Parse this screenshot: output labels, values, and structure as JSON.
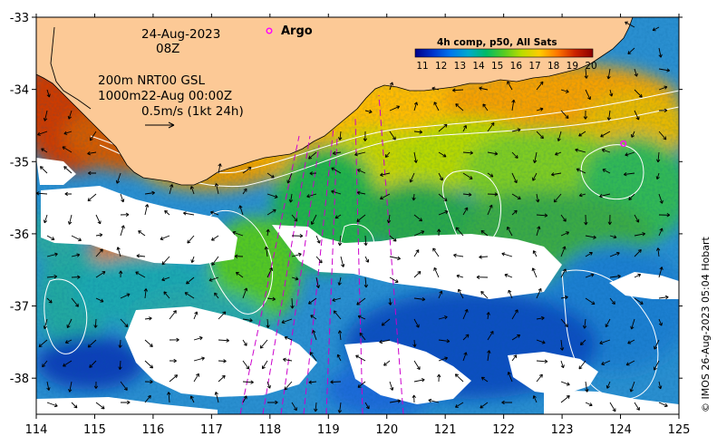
{
  "map": {
    "date_line": "24-Aug-2023",
    "time_line": "08Z",
    "depth_line_1": "200m  NRT00 GSL",
    "depth_line_2": "1000m22-Aug 00:00Z",
    "vector_scale_label": "0.5m/s (1kt 24h)",
    "argo_label": "Argo",
    "credit": "© IMOS 26-Aug-2023 05:04 Hobart",
    "lon_ticks": [
      "114",
      "115",
      "116",
      "117",
      "118",
      "119",
      "120",
      "121",
      "122",
      "123",
      "124",
      "125"
    ],
    "lat_ticks": [
      "-33",
      "-34",
      "-35",
      "-36",
      "-37",
      "-38"
    ],
    "lon_range": [
      114,
      125
    ],
    "lat_range": [
      -38.5,
      -33
    ],
    "colorbar": {
      "title": "4h comp, p50, All Sats",
      "ticks": [
        "11",
        "12",
        "13",
        "14",
        "15",
        "16",
        "17",
        "18",
        "19",
        "20"
      ],
      "colors": [
        "#00008b",
        "#0033cc",
        "#0077ee",
        "#00aacc",
        "#00bb66",
        "#55cc22",
        "#bbdd00",
        "#ffcc00",
        "#ff7700",
        "#cc2200",
        "#8b0000"
      ]
    },
    "colors": {
      "land": "#fcc996",
      "no_data": "#ffffff",
      "argo_marker": "#ff00ff",
      "argo_tracks": "#cc00cc",
      "vectors": "#000000",
      "contours": "#ffffff"
    },
    "argo_float": {
      "lon": 124.05,
      "lat": -34.75
    }
  }
}
